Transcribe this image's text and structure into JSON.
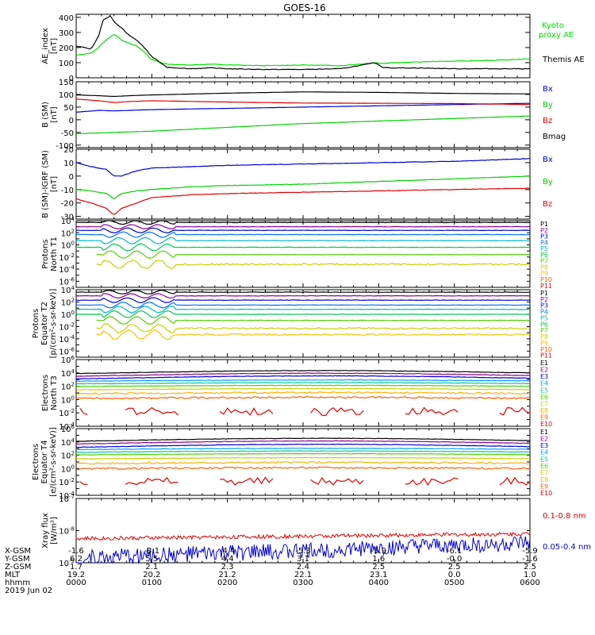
{
  "title": "GOES-16",
  "footer": {
    "row_labels": [
      "X-GSM",
      "Y-GSM",
      "Z-GSM",
      "MLT",
      "hhmm",
      "2019 Jun 02"
    ],
    "columns": [
      [
        "-1.6",
        "6.2",
        "1.7",
        "19.2",
        "0000"
      ],
      [
        "-3.1",
        "5.5",
        "2.1",
        "20.2",
        "0100"
      ],
      [
        "-4.4",
        "4.4",
        "2.3",
        "21.2",
        "0200"
      ],
      [
        "-5.3",
        "3.1",
        "2.4",
        "22.1",
        "0300"
      ],
      [
        "-5.9",
        "1.6",
        "2.5",
        "23.1",
        "0400"
      ],
      [
        "-6.1",
        "-0.0",
        "2.5",
        "0.0",
        "0500"
      ],
      [
        "-5.9",
        "-1.6",
        "2.5",
        "1.0",
        "0600"
      ]
    ]
  },
  "chart_data": [
    {
      "type": "line",
      "ylabel": [
        "AE_index",
        "[nT]"
      ],
      "ylim": [
        0,
        420
      ],
      "scale": "linear",
      "yticks": [
        0,
        100,
        200,
        300,
        400
      ],
      "x": [
        0,
        0.1,
        0.2,
        0.3,
        0.35,
        0.45,
        0.5,
        0.6,
        0.7,
        0.8,
        0.9,
        1.0,
        1.2,
        1.5,
        1.8,
        2.0,
        2.5,
        3.0,
        3.5,
        3.85,
        3.95,
        4.05,
        4.2,
        4.5,
        5.0,
        5.5,
        6.0
      ],
      "series": [
        {
          "name": "Kyoto proxy AE",
          "color": "#00e000",
          "values": [
            150,
            155,
            165,
            200,
            230,
            270,
            290,
            250,
            230,
            210,
            170,
            120,
            90,
            85,
            90,
            85,
            80,
            85,
            80,
            95,
            100,
            95,
            100,
            105,
            110,
            115,
            125
          ]
        },
        {
          "name": "Themis AE",
          "color": "#000000",
          "values": [
            210,
            200,
            190,
            280,
            380,
            410,
            370,
            330,
            280,
            250,
            200,
            140,
            70,
            60,
            65,
            60,
            55,
            55,
            60,
            90,
            100,
            70,
            65,
            65,
            60,
            60,
            60
          ]
        }
      ]
    },
    {
      "type": "line",
      "ylabel": [
        "B (SM)",
        "[nT]"
      ],
      "ylim": [
        -110,
        150
      ],
      "scale": "linear",
      "yticks": [
        -100,
        -50,
        0,
        50,
        100,
        150
      ],
      "x": [
        0,
        0.3,
        0.5,
        0.7,
        1,
        2,
        3,
        4,
        5,
        6
      ],
      "series": [
        {
          "name": "Bx",
          "color": "#0000d0",
          "values": [
            30,
            37,
            35,
            37,
            40,
            45,
            50,
            55,
            60,
            65
          ]
        },
        {
          "name": "By",
          "color": "#00d000",
          "values": [
            -55,
            -52,
            -50,
            -48,
            -45,
            -30,
            -15,
            -5,
            5,
            15
          ]
        },
        {
          "name": "Bz",
          "color": "#e00000",
          "values": [
            82,
            75,
            68,
            72,
            75,
            70,
            66,
            65,
            64,
            60
          ]
        },
        {
          "name": "Bmag",
          "color": "#000000",
          "values": [
            98,
            95,
            92,
            95,
            98,
            105,
            110,
            108,
            104,
            102
          ]
        }
      ]
    },
    {
      "type": "line",
      "ylabel": [
        "B (SM)-IGRF (SM)",
        "[nT]"
      ],
      "ylim": [
        -32,
        20
      ],
      "scale": "linear",
      "yticks": [
        -30,
        -20,
        -10,
        0,
        10,
        20
      ],
      "x": [
        0,
        0.2,
        0.4,
        0.5,
        0.6,
        0.8,
        1.0,
        1.5,
        2,
        3,
        4,
        5,
        6
      ],
      "series": [
        {
          "name": "Bx",
          "color": "#0000d0",
          "values": [
            10,
            7,
            5,
            0,
            0,
            4,
            6,
            7,
            8,
            9,
            10,
            11,
            13
          ]
        },
        {
          "name": "By",
          "color": "#00d000",
          "values": [
            -10,
            -11,
            -13,
            -17,
            -13,
            -11,
            -10,
            -8,
            -7,
            -6,
            -4,
            -2,
            0
          ]
        },
        {
          "name": "Bz",
          "color": "#e00000",
          "values": [
            -17,
            -20,
            -24,
            -29,
            -24,
            -20,
            -16,
            -14,
            -13,
            -12,
            -11,
            -10,
            -9
          ]
        }
      ]
    },
    {
      "type": "line",
      "ylabel": [
        "Protons",
        "North T1"
      ],
      "ylim": [
        -7,
        4
      ],
      "scale": "log",
      "ytick_labels": [
        "10^4",
        "10^2",
        "10^0",
        "10^-2",
        "10^-4",
        "10^-6"
      ],
      "ytick_exps": [
        4,
        2,
        0,
        -2,
        -4,
        -6
      ],
      "legend": [
        "P1",
        "P2",
        "P3",
        "P4",
        "P5",
        "P6",
        "P7",
        "P8",
        "P9",
        "P10",
        "P11"
      ],
      "colors": [
        "#000000",
        "#900090",
        "#0000d0",
        "#0070ff",
        "#00b8c8",
        "#00c850",
        "#50d000",
        "#c8d000",
        "#ffc000",
        "#ff6000",
        "#e00000"
      ],
      "levels": [
        3.7,
        3.0,
        2.4,
        1.7,
        0.7,
        -0.4,
        -1.6,
        -3.2,
        null,
        null,
        null
      ]
    },
    {
      "type": "line",
      "ylabel": [
        "Protons",
        "Equator T2",
        "[p/(cm²-s-sr-keV)]"
      ],
      "ylim": [
        -7,
        4
      ],
      "scale": "log",
      "ytick_labels": [
        "10^4",
        "10^2",
        "10^0",
        "10^-2",
        "10^-4",
        "10^-6"
      ],
      "ytick_exps": [
        4,
        2,
        0,
        -2,
        -4,
        -6
      ],
      "legend": [
        "P1",
        "P2",
        "P3",
        "P4",
        "P5",
        "P6",
        "P7",
        "P8",
        "P9",
        "P10",
        "P11"
      ],
      "colors": [
        "#000000",
        "#900090",
        "#0000d0",
        "#0070ff",
        "#00b8c8",
        "#00c850",
        "#50d000",
        "#c8d000",
        "#ffc000",
        "#ff6000",
        "#e00000"
      ],
      "levels": [
        3.6,
        3.0,
        2.3,
        1.5,
        0.8,
        0.0,
        -1.0,
        -2.3,
        -3.3,
        null,
        null
      ]
    },
    {
      "type": "line",
      "ylabel": [
        "Electrons",
        "North T3"
      ],
      "ylim": [
        -4,
        6
      ],
      "scale": "log",
      "ytick_labels": [
        "10^6",
        "10^4",
        "10^2",
        "10^0",
        "10^-2",
        "10^-4"
      ],
      "ytick_exps": [
        6,
        4,
        2,
        0,
        -2,
        -4
      ],
      "legend": [
        "E1",
        "E2",
        "E3",
        "E4",
        "E5",
        "E6",
        "E7",
        "E8",
        "E9",
        "E10"
      ],
      "colors": [
        "#000000",
        "#900090",
        "#0000d0",
        "#00a0ff",
        "#00c8a0",
        "#50d000",
        "#c8d000",
        "#ffb000",
        "#ff6000",
        "#e00000"
      ],
      "levels": [
        4.0,
        3.6,
        3.2,
        2.8,
        2.4,
        2.0,
        1.5,
        0.9,
        0.2,
        -1.8
      ]
    },
    {
      "type": "line",
      "ylabel": [
        "Electrons",
        "Equator T4",
        "[e/(cm²-s-sr-keV)]"
      ],
      "ylim": [
        -4,
        6
      ],
      "scale": "log",
      "ytick_labels": [
        "10^6",
        "10^4",
        "10^2",
        "10^0",
        "10^-2",
        "10^-4"
      ],
      "ytick_exps": [
        6,
        4,
        2,
        0,
        -2,
        -4
      ],
      "legend": [
        "E1",
        "E2",
        "E3",
        "E4",
        "E5",
        "E6",
        "E7",
        "E8",
        "E9",
        "E10"
      ],
      "colors": [
        "#000000",
        "#900090",
        "#0000d0",
        "#00a0ff",
        "#00c8a0",
        "#50d000",
        "#c8d000",
        "#ffb000",
        "#ff6000",
        "#e00000"
      ],
      "levels": [
        4.2,
        3.8,
        3.3,
        2.9,
        2.5,
        2.1,
        1.5,
        0.8,
        0.0,
        -1.9
      ]
    },
    {
      "type": "line",
      "ylabel": [
        "Xray flux",
        "[W/m²]"
      ],
      "ylim": [
        -9,
        -7
      ],
      "scale": "log",
      "ytick_labels": [
        "10^-7",
        "10^-8",
        "10^-9"
      ],
      "ytick_exps": [
        -7,
        -8,
        -9
      ],
      "series": [
        {
          "name": "0.1-0.8 nm",
          "color": "#e00000",
          "base": -8.25,
          "end": -8.1
        },
        {
          "name": "0.05-0.4 nm",
          "color": "#0000d0",
          "base": -8.95,
          "end": -8.5
        }
      ]
    }
  ]
}
